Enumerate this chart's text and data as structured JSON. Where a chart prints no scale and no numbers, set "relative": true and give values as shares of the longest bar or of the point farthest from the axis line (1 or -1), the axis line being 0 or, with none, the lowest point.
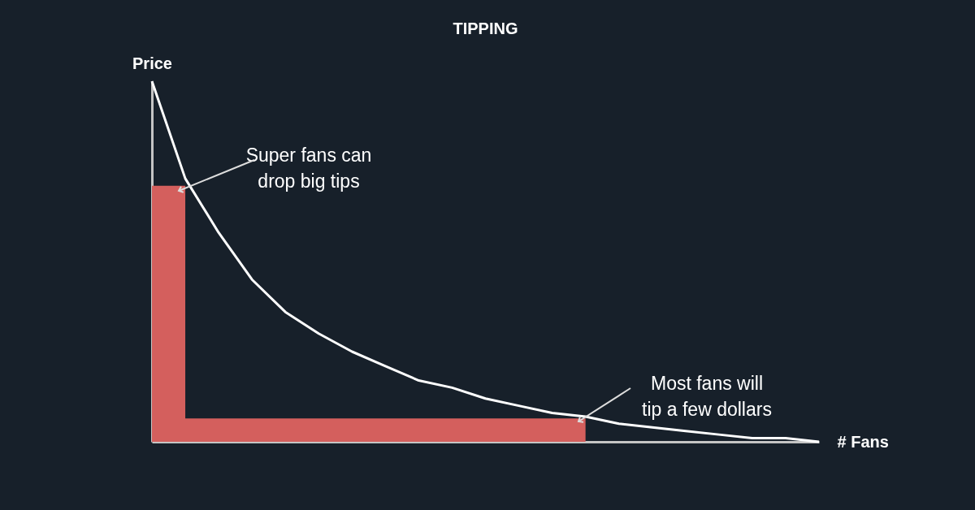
{
  "chart_data": {
    "type": "line",
    "title": "TIPPING",
    "xlabel": "# Fans",
    "ylabel": "Price",
    "relative": true,
    "categories": [
      null,
      null,
      null,
      null,
      null,
      null,
      null,
      null,
      null,
      null,
      null,
      null,
      null,
      null,
      null,
      null,
      null,
      null,
      null,
      null,
      null
    ],
    "series": [
      {
        "type": "area",
        "color": "#d45f5d",
        "values": [
          0.71,
          0.065,
          0.065,
          0.065,
          0.065,
          0.065,
          0.065,
          0.065,
          0.065,
          0.065,
          0.065,
          0.065,
          0.065,
          0.065,
          null,
          null,
          null,
          null,
          null,
          null,
          null
        ]
      },
      {
        "color": "#ffffff",
        "values": [
          1,
          0.73,
          0.58,
          0.45,
          0.36,
          0.3,
          0.25,
          0.21,
          0.17,
          0.15,
          0.12,
          0.1,
          0.08,
          0.07,
          0.05,
          0.04,
          0.03,
          0.02,
          0.01,
          0.01,
          0
        ]
      }
    ],
    "annotations": [
      "Super fans can\ndrop big tips",
      "Most fans will\ntip a few dollars"
    ]
  }
}
